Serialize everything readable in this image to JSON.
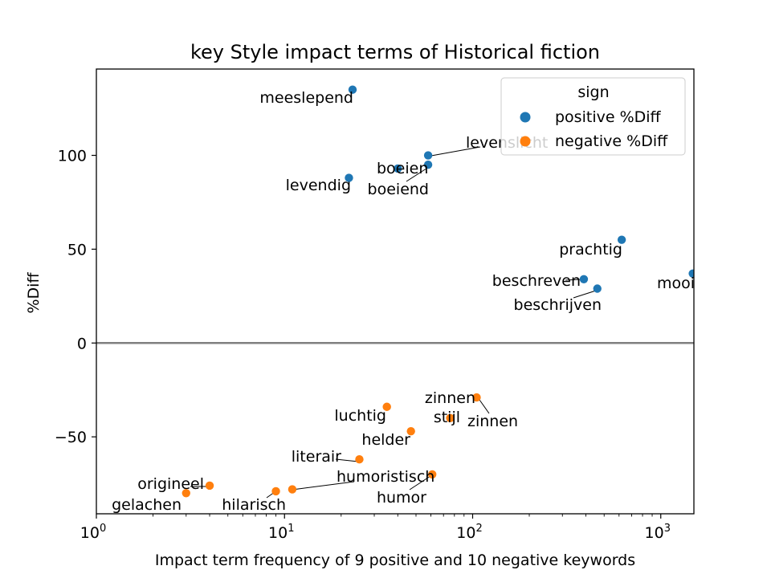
{
  "chart_data": {
    "type": "scatter",
    "title": "key Style impact terms of Historical fiction",
    "xlabel": "Impact term frequency of 9 positive and 10 negative keywords",
    "ylabel": "%Diff",
    "xscale": "log",
    "xlim": [
      1,
      1500
    ],
    "ylim": [
      -91,
      146
    ],
    "x_ticks": [
      {
        "value": 1,
        "base": "10",
        "exp": "0"
      },
      {
        "value": 10,
        "base": "10",
        "exp": "1"
      },
      {
        "value": 100,
        "base": "10",
        "exp": "2"
      },
      {
        "value": 1000,
        "base": "10",
        "exp": "3"
      }
    ],
    "y_ticks": [
      {
        "value": 100,
        "label": "100"
      },
      {
        "value": 50,
        "label": "50"
      },
      {
        "value": 0,
        "label": "0"
      },
      {
        "value": -50,
        "label": "−50"
      }
    ],
    "zero_line": true,
    "grid": false,
    "legend": {
      "title": "sign",
      "position": "top-right",
      "entries": [
        {
          "label": "positive %Diff",
          "color": "#1f77b4"
        },
        {
          "label": "negative %Diff",
          "color": "#ff7f0e"
        }
      ]
    },
    "series": [
      {
        "name": "positive %Diff",
        "color": "#1f77b4",
        "points": [
          {
            "label": "meeslepend",
            "x": 23,
            "y": 135
          },
          {
            "label": "levenslicht",
            "x": 58,
            "y": 100
          },
          {
            "label": "boeien",
            "x": 40,
            "y": 93
          },
          {
            "label": "boeiend",
            "x": 58,
            "y": 95
          },
          {
            "label": "levendig",
            "x": 22,
            "y": 88
          },
          {
            "label": "prachtig",
            "x": 620,
            "y": 55
          },
          {
            "label": "beschreven",
            "x": 390,
            "y": 34
          },
          {
            "label": "beschrijven",
            "x": 460,
            "y": 29
          },
          {
            "label": "mooi",
            "x": 1480,
            "y": 37
          }
        ]
      },
      {
        "name": "negative %Diff",
        "color": "#ff7f0e",
        "points": [
          {
            "label": "zinnen",
            "x": 105,
            "y": -29
          },
          {
            "label": "stijl",
            "x": 76,
            "y": -40
          },
          {
            "label": "luchtig",
            "x": 35,
            "y": -34
          },
          {
            "label": "helder",
            "x": 47,
            "y": -47
          },
          {
            "label": "literair",
            "x": 25,
            "y": -62
          },
          {
            "label": "humoristisch",
            "x": 11,
            "y": -78
          },
          {
            "label": "humor",
            "x": 61,
            "y": -70
          },
          {
            "label": "hilarisch",
            "x": 9,
            "y": -79
          },
          {
            "label": "origineel",
            "x": 4,
            "y": -76
          },
          {
            "label": "gelachen",
            "x": 3,
            "y": -80
          }
        ]
      }
    ],
    "annotations": [
      {
        "text": "meeslepend",
        "for": "meeslepend"
      },
      {
        "text": "levenslicht",
        "for": "levenslicht"
      },
      {
        "text": "boeien",
        "for": "boeien"
      },
      {
        "text": "boeiend",
        "for": "boeiend"
      },
      {
        "text": "levendig",
        "for": "levendig"
      },
      {
        "text": "prachtig",
        "for": "prachtig"
      },
      {
        "text": "beschreven",
        "for": "beschreven"
      },
      {
        "text": "beschrijven",
        "for": "beschrijven"
      },
      {
        "text": "mooi",
        "for": "mooi"
      },
      {
        "text": "zinnen",
        "for": "zinnen"
      },
      {
        "text": "zinnen",
        "for": "zinnen"
      },
      {
        "text": "stijl",
        "for": "stijl"
      },
      {
        "text": "luchtig",
        "for": "luchtig"
      },
      {
        "text": "helder",
        "for": "helder"
      },
      {
        "text": "literair",
        "for": "literair"
      },
      {
        "text": "humoristisch",
        "for": "humoristisch"
      },
      {
        "text": "humor",
        "for": "humor"
      },
      {
        "text": "hilarisch",
        "for": "hilarisch"
      },
      {
        "text": "origineel",
        "for": "origineel"
      },
      {
        "text": "gelachen",
        "for": "gelachen"
      }
    ]
  }
}
